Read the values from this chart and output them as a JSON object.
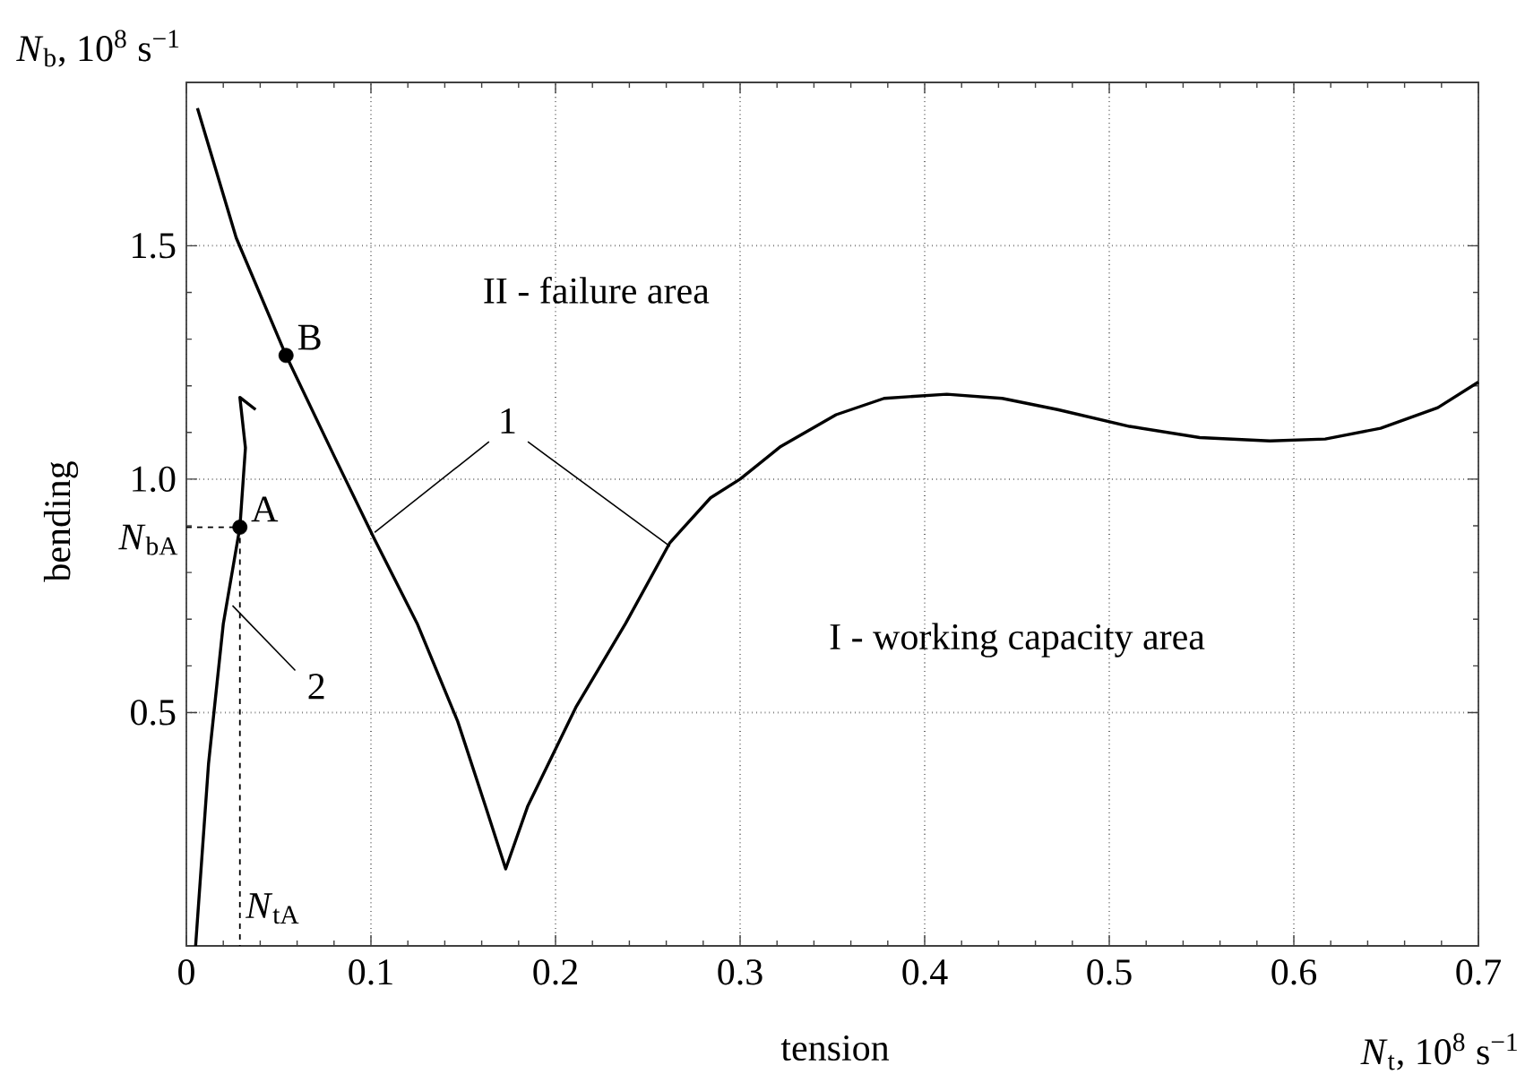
{
  "chart_data": {
    "type": "line",
    "xlabel": "tension",
    "ylabel": "bending",
    "xlim": [
      0,
      0.7
    ],
    "ylim": [
      0,
      1.85
    ],
    "xticks": [
      0,
      0.1,
      0.2,
      0.3,
      0.4,
      0.5,
      0.6,
      0.7
    ],
    "yticks": [
      0.5,
      {
        "value": 1.0,
        "label": "1.0"
      },
      1.5
    ],
    "grid": true,
    "series": [
      {
        "color": "#000000",
        "x": [
          0.006,
          0.027,
          0.054,
          0.08,
          0.102,
          0.125,
          0.147,
          0.162,
          0.173,
          0.185,
          0.211,
          0.238,
          0.262,
          0.284,
          0.3,
          0.322,
          0.352,
          0.378,
          0.412,
          0.442,
          0.472,
          0.511,
          0.549,
          0.587,
          0.617,
          0.647,
          0.678,
          0.7
        ],
        "values": [
          1.795,
          1.517,
          1.265,
          1.05,
          0.871,
          0.691,
          0.481,
          0.3,
          0.165,
          0.3,
          0.511,
          0.691,
          0.864,
          0.96,
          1.0,
          1.07,
          1.138,
          1.173,
          1.182,
          1.173,
          1.149,
          1.113,
          1.089,
          1.082,
          1.086,
          1.109,
          1.153,
          1.208
        ]
      },
      {
        "color": "#000000",
        "x": [
          0.005,
          0.012,
          0.02,
          0.029,
          0.032,
          0.029,
          0.0375
        ],
        "values": [
          0,
          0.39,
          0.69,
          0.897,
          1.067,
          1.175,
          1.149
        ]
      },
      {
        "color": "#000000",
        "line_style": "dashed",
        "x": [
          0,
          0.029,
          0.029
        ],
        "values": [
          0.897,
          0.897,
          0
        ]
      },
      {
        "type": "scatter",
        "color": "#000000",
        "marker": "circle",
        "x": [
          0.029,
          0.054
        ],
        "values": [
          0.897,
          1.265
        ]
      }
    ],
    "annotations": [
      "II - failure area",
      "I - working capacity area",
      {
        "text": "1",
        "x": 0.102,
        "y": 0.886
      },
      {
        "text": "2",
        "x": 0.025,
        "y": 0.729
      },
      {
        "text": "A",
        "x": 0.029,
        "y": 0.897
      },
      {
        "text": "B",
        "x": 0.054,
        "y": 1.265
      },
      "*N*$_{bA}$",
      "*N*$_{tA}$",
      "*N*$_{b}$, 10$^{8}$ s$^{−1}$",
      "*N*$_{t}$, 10$^{8}$ s$^{−1}$"
    ]
  }
}
